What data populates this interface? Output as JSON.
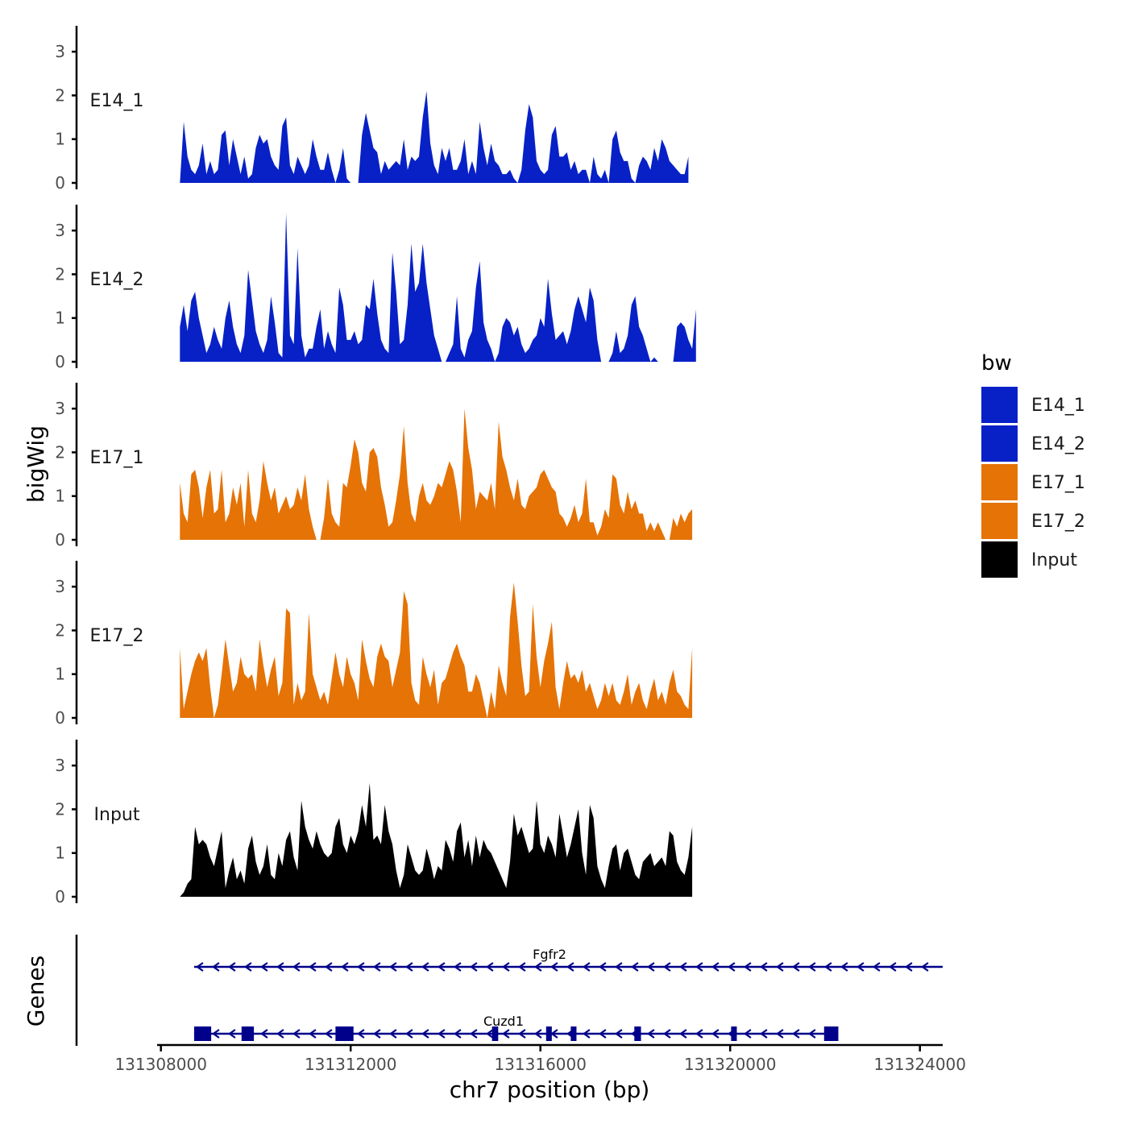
{
  "chart_data": {
    "type": "area",
    "chromosome": "chr7",
    "xlabel": "chr7 position (bp)",
    "ylabel": "bigWig",
    "genes_label": "Genes",
    "xlim": [
      131307920,
      131324480
    ],
    "ylim": [
      0,
      3.5
    ],
    "x_ticks": [
      {
        "value": 131308000,
        "label": "131308000"
      },
      {
        "value": 131312000,
        "label": "131312000"
      },
      {
        "value": 131316000,
        "label": "131316000"
      },
      {
        "value": 131320000,
        "label": "131320000"
      },
      {
        "value": 131324000,
        "label": "131324000"
      }
    ],
    "y_ticks": [
      {
        "value": 0,
        "label": "0"
      },
      {
        "value": 1,
        "label": "1"
      },
      {
        "value": 2,
        "label": "2"
      },
      {
        "value": 3,
        "label": "3"
      }
    ],
    "legend": {
      "title": "bw",
      "items": [
        {
          "label": "E14_1",
          "color": "#0721C7"
        },
        {
          "label": "E14_2",
          "color": "#0721C7"
        },
        {
          "label": "E17_1",
          "color": "#E57306"
        },
        {
          "label": "E17_2",
          "color": "#E57306"
        },
        {
          "label": "Input",
          "color": "#000000"
        }
      ]
    },
    "series": [
      {
        "name": "E14_1",
        "color": "#0721C7",
        "start": 131308400,
        "step": 80,
        "values": [
          0,
          1.4,
          0.6,
          0.3,
          0.2,
          0.4,
          0.9,
          0.2,
          0.5,
          0.2,
          0.3,
          1.1,
          1.2,
          0.4,
          1.0,
          0.6,
          0.2,
          0.6,
          0.1,
          0.2,
          0.8,
          1.1,
          0.9,
          1.0,
          0.6,
          0.4,
          0.3,
          1.3,
          1.5,
          0.4,
          0.2,
          0.6,
          0.4,
          0.2,
          0.4,
          1.0,
          0.6,
          0.3,
          0.3,
          0.7,
          0.3,
          0,
          0.3,
          0.8,
          0.1,
          0,
          0,
          0,
          1.1,
          1.6,
          1.2,
          0.8,
          0.7,
          0.2,
          0.5,
          0.3,
          0.4,
          0.5,
          0.4,
          1.0,
          0.3,
          0.6,
          0.5,
          0.6,
          1.5,
          2.1,
          0.9,
          0.4,
          0.2,
          0.8,
          0.5,
          0.8,
          0.3,
          0.3,
          0.5,
          1.0,
          0.2,
          0.5,
          0.2,
          1.4,
          0.8,
          0.4,
          0.9,
          0.5,
          0.4,
          0.2,
          0.2,
          0.3,
          0.1,
          0,
          0.3,
          1.2,
          1.8,
          1.5,
          0.5,
          0.3,
          0.2,
          0.3,
          1.1,
          1.3,
          0.6,
          0.6,
          0.7,
          0.3,
          0.5,
          0.2,
          0.3,
          0.3,
          0,
          0.6,
          0.2,
          0.1,
          0.3,
          0,
          1.0,
          1.2,
          0.7,
          0.5,
          0.5,
          0.1,
          0,
          0.4,
          0.6,
          0.5,
          0.3,
          0.8,
          0.5,
          1.0,
          0.8,
          0.5,
          0.4,
          0.3,
          0.2,
          0.2,
          0.6
        ]
      },
      {
        "name": "E14_2",
        "color": "#0721C7",
        "start": 131308400,
        "step": 80,
        "values": [
          0.8,
          1.3,
          0.7,
          1.4,
          1.6,
          1.0,
          0.6,
          0.2,
          0.4,
          0.8,
          0.5,
          0.3,
          1.0,
          1.4,
          0.8,
          0.4,
          0.2,
          0.6,
          2.1,
          1.4,
          0.7,
          0.4,
          0.2,
          0.5,
          1.5,
          0.9,
          0.2,
          0.1,
          3.4,
          0.6,
          0.4,
          2.6,
          0.6,
          0.1,
          0.3,
          0.3,
          0.8,
          1.2,
          0.3,
          0.7,
          0.4,
          0.2,
          1.7,
          1.3,
          0.5,
          0.5,
          0.7,
          0.4,
          0.5,
          1.3,
          1.2,
          1.9,
          1.1,
          0.5,
          0.3,
          0.2,
          2.5,
          1.6,
          0.4,
          0.5,
          1.3,
          2.7,
          1.6,
          1.8,
          2.7,
          1.8,
          1.2,
          0.6,
          0.3,
          0,
          0,
          0.2,
          0.4,
          1.5,
          0.3,
          0.1,
          0.5,
          0.7,
          1.7,
          2.3,
          0.9,
          0.5,
          0.3,
          0,
          0.2,
          0.8,
          1.0,
          0.9,
          0.6,
          0.8,
          0.4,
          0.2,
          0.3,
          0.5,
          0.6,
          1.0,
          0.8,
          1.9,
          1.1,
          0.5,
          0.6,
          0.7,
          0.4,
          0.7,
          1.2,
          1.5,
          1.2,
          0.9,
          1.7,
          1.4,
          0.5,
          0,
          0,
          0,
          0.2,
          0.7,
          0.2,
          0.3,
          0.6,
          1.3,
          1.5,
          0.8,
          0.6,
          0.3,
          0,
          0.1,
          0,
          0,
          0,
          0,
          0,
          0.8,
          0.9,
          0.8,
          0.5,
          0.3,
          1.2
        ]
      },
      {
        "name": "E17_1",
        "color": "#E57306",
        "start": 131308400,
        "step": 80,
        "values": [
          1.3,
          0.6,
          0.4,
          1.5,
          1.6,
          1.2,
          0.5,
          1.2,
          1.6,
          0.6,
          0.7,
          1.6,
          0.4,
          0.6,
          1.2,
          0.8,
          1.3,
          0.3,
          1.6,
          0.6,
          0.4,
          0.9,
          1.8,
          1.3,
          0.9,
          1.2,
          0.6,
          0.8,
          1.0,
          0.7,
          0.8,
          1.2,
          0.9,
          1.5,
          0.7,
          0.3,
          0,
          0,
          0.5,
          1.4,
          0.6,
          0.4,
          0.3,
          1.3,
          1.2,
          1.7,
          2.3,
          2.0,
          1.3,
          1.1,
          2.0,
          2.1,
          1.9,
          1.2,
          0.8,
          0.3,
          0.4,
          0.9,
          1.5,
          2.6,
          1.3,
          0.6,
          0.4,
          1.0,
          1.3,
          0.9,
          0.8,
          1.0,
          1.3,
          1.2,
          1.5,
          1.8,
          1.6,
          1.1,
          0.4,
          3.0,
          2.1,
          1.6,
          0.7,
          1.1,
          1.0,
          0.9,
          1.3,
          0.7,
          2.7,
          1.9,
          1.6,
          1.2,
          0.9,
          1.4,
          0.8,
          0.7,
          1.0,
          1.1,
          1.2,
          1.5,
          1.6,
          1.4,
          1.2,
          1.1,
          0.6,
          0.5,
          0.3,
          0.5,
          0.8,
          0.4,
          0.6,
          1.4,
          0.4,
          0.4,
          0.1,
          0.3,
          0.7,
          0.5,
          1.5,
          1.4,
          0.8,
          0.6,
          1.1,
          0.7,
          0.9,
          0.6,
          0.6,
          0.2,
          0.4,
          0.2,
          0.4,
          0.2,
          0,
          0,
          0.5,
          0.3,
          0.6,
          0.4,
          0.6,
          0.7
        ]
      },
      {
        "name": "E17_2",
        "color": "#E57306",
        "start": 131308400,
        "step": 80,
        "values": [
          1.6,
          0.2,
          0.6,
          1.0,
          1.3,
          1.5,
          1.3,
          1.6,
          0.7,
          0,
          0.3,
          1.0,
          1.8,
          1.2,
          0.6,
          0.8,
          1.4,
          1.0,
          0.9,
          1.0,
          0.6,
          1.8,
          1.2,
          0.7,
          1.1,
          1.4,
          0.5,
          0.8,
          2.5,
          2.4,
          0.3,
          0.8,
          0.4,
          0.6,
          2.4,
          1.0,
          0.7,
          0.4,
          0.6,
          0.3,
          0.9,
          1.5,
          1.0,
          0.7,
          1.4,
          1.0,
          0.8,
          0.4,
          1.8,
          1.3,
          0.9,
          0.7,
          1.4,
          1.7,
          1.4,
          1.3,
          0.7,
          1.1,
          1.5,
          2.9,
          2.6,
          0.8,
          0.4,
          0.3,
          1.4,
          1.0,
          0.7,
          1.1,
          0.3,
          0.8,
          0.9,
          1.2,
          1.5,
          1.7,
          1.4,
          1.2,
          0.6,
          0.6,
          1.0,
          0.8,
          0.4,
          0,
          0.6,
          0.2,
          1.2,
          0.8,
          0.5,
          2.3,
          3.1,
          2.2,
          1.2,
          0.5,
          0.6,
          2.6,
          1.4,
          0.7,
          1.3,
          1.7,
          2.2,
          0.7,
          0.2,
          0.8,
          1.3,
          0.9,
          1.0,
          0.8,
          1.1,
          0.6,
          0.8,
          0.5,
          0.2,
          0.4,
          0.8,
          0.5,
          0.8,
          0.4,
          0.3,
          0.6,
          1.0,
          0.3,
          0.6,
          0.8,
          0.4,
          0.2,
          0.6,
          0.9,
          0.4,
          0.6,
          0.3,
          0.8,
          1.1,
          0.6,
          0.5,
          0.3,
          0.2,
          1.6
        ]
      },
      {
        "name": "Input",
        "color": "#000000",
        "start": 131308400,
        "step": 80,
        "values": [
          0,
          0.1,
          0.3,
          0.4,
          1.6,
          1.2,
          1.3,
          1.2,
          0.9,
          0.7,
          1.1,
          1.5,
          0.2,
          0.6,
          0.9,
          0.4,
          0.6,
          0.3,
          1.1,
          1.4,
          0.8,
          0.5,
          0.7,
          1.2,
          0.5,
          0.4,
          1.0,
          0.7,
          1.3,
          1.5,
          0.9,
          0.6,
          2.2,
          1.6,
          1.3,
          1.1,
          1.5,
          1.2,
          1.0,
          0.9,
          1.0,
          1.6,
          1.8,
          1.2,
          1.0,
          1.4,
          1.2,
          1.5,
          2.1,
          1.6,
          2.6,
          1.3,
          1.4,
          1.2,
          2.1,
          1.5,
          1.2,
          0.6,
          0.2,
          0.5,
          1.2,
          0.9,
          0.6,
          0.5,
          0.6,
          1.1,
          0.8,
          0.4,
          0.7,
          0.6,
          1.3,
          1.1,
          0.8,
          1.5,
          1.7,
          0.9,
          1.3,
          0.7,
          1.4,
          0.9,
          1.3,
          1.1,
          1.0,
          0.8,
          0.6,
          0.4,
          0.2,
          0.8,
          1.9,
          1.4,
          1.6,
          1.3,
          1.0,
          1.1,
          2.2,
          1.2,
          1.0,
          1.4,
          1.2,
          0.9,
          1.9,
          1.4,
          0.9,
          1.2,
          1.6,
          2.0,
          1.0,
          0.5,
          2.1,
          1.8,
          0.7,
          0.4,
          0.2,
          0.7,
          1.1,
          1.2,
          0.6,
          1.0,
          1.1,
          0.8,
          0.5,
          0.4,
          0.8,
          0.9,
          1.0,
          0.7,
          0.8,
          0.9,
          0.7,
          1.5,
          1.4,
          0.8,
          0.6,
          0.5,
          0.9,
          1.6
        ]
      }
    ],
    "gene_tracks": [
      {
        "name": "Fgfr2",
        "strand": "-",
        "line_color": "#00008B",
        "start": 131308700,
        "end": 131324480,
        "exons": []
      },
      {
        "name": "Cuzd1",
        "strand": "-",
        "line_color": "#00008B",
        "start": 131308700,
        "end": 131322280,
        "exons": [
          {
            "start": 131308700,
            "end": 131309060
          },
          {
            "start": 131309700,
            "end": 131309960
          },
          {
            "start": 131311680,
            "end": 131312060
          },
          {
            "start": 131314980,
            "end": 131315110
          },
          {
            "start": 131316120,
            "end": 131316240
          },
          {
            "start": 131316640,
            "end": 131316760
          },
          {
            "start": 131317980,
            "end": 131318120
          },
          {
            "start": 131320020,
            "end": 131320140
          },
          {
            "start": 131321980,
            "end": 131322280
          }
        ]
      }
    ]
  }
}
